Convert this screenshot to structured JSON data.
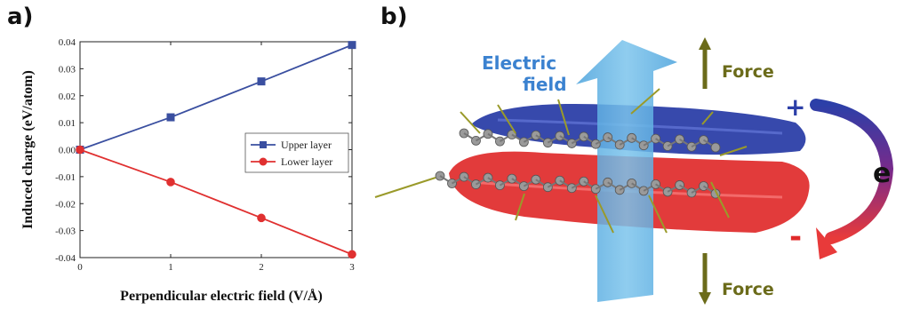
{
  "panels": {
    "a_label": "a)",
    "b_label": "b)"
  },
  "chart_data": {
    "type": "line",
    "x": [
      0,
      1,
      2,
      3
    ],
    "xlabel": "Perpendicular electric field (V/Å)",
    "ylabel": "Induced charge (eV/atom)",
    "xlim": [
      0,
      3
    ],
    "ylim": [
      -0.04,
      0.04
    ],
    "xticks": [
      "0",
      "1",
      "2",
      "3"
    ],
    "yticks": [
      "0.04",
      "0.03",
      "0.02",
      "0.01",
      "0.00",
      "-0.01",
      "-0.02",
      "-0.03",
      "-0.04"
    ],
    "grid": false,
    "legend_position": "right",
    "series": [
      {
        "name": "Upper layer",
        "values": [
          0.0,
          0.012,
          0.0253,
          0.0388
        ],
        "color": "#3a4fa0",
        "marker": "square"
      },
      {
        "name": "Lower layer",
        "values": [
          0.0,
          -0.012,
          -0.0253,
          -0.0388
        ],
        "color": "#e03030",
        "marker": "circle"
      }
    ]
  },
  "illustration": {
    "electric_field_label_line1": "Electric",
    "electric_field_label_line2": "field",
    "force_top": "Force",
    "force_bottom": "Force",
    "plus_sign": "+",
    "minus_sign": "-",
    "electron_label": "e",
    "colors": {
      "field_arrow": "#5aaee0",
      "field_text": "#3b82d0",
      "force": "#6b6b1a",
      "upper_charge": "#2c3fa8",
      "lower_charge": "#e02a2a"
    }
  }
}
